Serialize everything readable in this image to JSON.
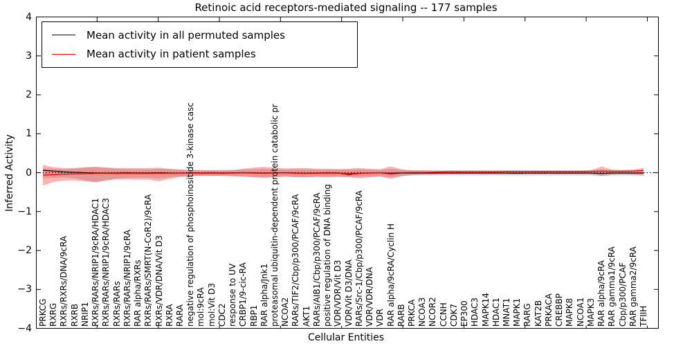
{
  "chart_data": {
    "type": "line",
    "title": "Retinoic acid receptors-mediated signaling -- 177 samples",
    "xlabel": "Cellular Entities",
    "ylabel": "Inferred Activity",
    "ylim": [
      -4,
      4
    ],
    "yticks": [
      4,
      3,
      2,
      1,
      0,
      -1,
      -2,
      -3,
      -4
    ],
    "grid": false,
    "legend_position": "upper-left",
    "zero_line": "dotted-black",
    "categories": [
      "PRKCG",
      "RXRG",
      "RXRs/RXRs/DNA/9cRA",
      "RXRB",
      "NRIP1",
      "RXRs/RARs/NRIP1/9cRA/HDAC1",
      "RXRs/RARs/NRIP1/9cRA/HDAC3",
      "RXRs/RARs",
      "RXRs/RARs/NRIP1/9cRA",
      "RAR alpha/RXRs",
      "RXRs/RARs/SMRT(N-CoR2)/9cRA",
      "RXRs/VDR/DNA/Vit D3",
      "RXRA",
      "RARA",
      "negative regulation of phosphoinositide 3-kinase casc",
      "mol:9cRA",
      "mol:Vit D3",
      "CDC2",
      "response to UV",
      "CRBP1/9-cic-RA",
      "RBP1",
      "RAR alpha/Jnk1",
      "proteasomal ubiquitin-dependent protein catabolic pr",
      "NCOA2",
      "RARs/TIF2/Cbp/p300/PCAF/9cRA",
      "AKT1",
      "RARs/AIB1/Cbp/p300/PCAF/9cRA",
      "positive regulation of DNA binding",
      "VDR/VDR/Vit D3",
      "VDR/Vit D3/DNA",
      "RARs/Src-1/Cbp/p300/PCAF/9cRA",
      "VDR/VDR/DNA",
      "VDR",
      "RAR alpha/9cRA/Cyclin H",
      "RARB",
      "PRKCA",
      "NCOA3",
      "NCOR2",
      "CCNH",
      "CDK7",
      "EP300",
      "HDAC3",
      "MAPK14",
      "HDAC1",
      "MNAT1",
      "MAPK1",
      "RARG",
      "KAT2B",
      "PRKACA",
      "CREBBP",
      "MAPK8",
      "NCOA1",
      "MAPK3",
      "RAR alpha/9cRA",
      "RAR gamma1/9cRA",
      "Cbp/p300/PCAF",
      "RAR gamma2/9cRA",
      "TFIIH"
    ],
    "series": [
      {
        "name": "Mean activity in all permuted samples",
        "color": "#000000",
        "values": [
          0.06,
          0.04,
          0.02,
          0.01,
          0.0,
          -0.01,
          -0.01,
          -0.01,
          -0.005,
          -0.01,
          -0.01,
          -0.005,
          -0.01,
          -0.01,
          -0.005,
          -0.01,
          -0.005,
          -0.01,
          -0.005,
          0.0,
          -0.005,
          -0.01,
          -0.005,
          0.0,
          -0.01,
          -0.015,
          -0.01,
          -0.005,
          -0.01,
          -0.05,
          -0.02,
          -0.01,
          -0.005,
          -0.03,
          -0.01,
          -0.01,
          -0.01,
          -0.01,
          -0.01,
          -0.01,
          -0.01,
          -0.01,
          -0.01,
          -0.01,
          -0.01,
          -0.015,
          -0.01,
          -0.01,
          -0.01,
          -0.01,
          -0.01,
          -0.01,
          -0.01,
          -0.02,
          -0.01,
          -0.01,
          -0.01,
          -0.01
        ]
      },
      {
        "name": "Mean activity in patient samples",
        "color": "#ff0000",
        "values": [
          -0.065,
          -0.05,
          -0.04,
          -0.03,
          -0.025,
          -0.02,
          -0.015,
          -0.02,
          -0.015,
          -0.02,
          -0.02,
          -0.015,
          -0.015,
          -0.01,
          -0.01,
          -0.015,
          -0.01,
          -0.015,
          -0.01,
          -0.005,
          -0.01,
          -0.015,
          -0.01,
          -0.005,
          -0.015,
          -0.02,
          -0.015,
          -0.01,
          -0.015,
          -0.02,
          -0.015,
          -0.01,
          -0.005,
          -0.01,
          0.0,
          0.005,
          0.005,
          0.01,
          0.02,
          0.025,
          0.025,
          0.025,
          0.025,
          0.025,
          0.03,
          0.03,
          0.03,
          0.03,
          0.03,
          0.03,
          0.03,
          0.03,
          0.035,
          0.04,
          0.035,
          0.035,
          0.04,
          0.06
        ]
      }
    ],
    "bands": [
      {
        "name": "permuted-samples-envelope",
        "color": "rgba(128,128,128,0.30)",
        "upper": [
          0.11,
          0.1,
          0.09,
          0.1,
          0.13,
          0.15,
          0.13,
          0.1,
          0.09,
          0.09,
          0.09,
          0.1,
          0.09,
          0.08,
          0.07,
          0.07,
          0.07,
          0.07,
          0.07,
          0.08,
          0.09,
          0.1,
          0.09,
          0.08,
          0.09,
          0.09,
          0.08,
          0.08,
          0.08,
          0.08,
          0.09,
          0.08,
          0.07,
          0.1,
          0.07,
          0.06,
          0.06,
          0.06,
          0.06,
          0.06,
          0.06,
          0.06,
          0.06,
          0.06,
          0.06,
          0.06,
          0.06,
          0.06,
          0.06,
          0.06,
          0.06,
          0.06,
          0.06,
          0.08,
          0.06,
          0.06,
          0.06,
          0.07
        ],
        "lower": [
          -0.14,
          -0.13,
          -0.12,
          -0.14,
          -0.2,
          -0.25,
          -0.2,
          -0.15,
          -0.13,
          -0.13,
          -0.13,
          -0.15,
          -0.12,
          -0.1,
          -0.09,
          -0.09,
          -0.09,
          -0.09,
          -0.09,
          -0.1,
          -0.11,
          -0.12,
          -0.11,
          -0.1,
          -0.11,
          -0.11,
          -0.1,
          -0.1,
          -0.1,
          -0.1,
          -0.11,
          -0.1,
          -0.09,
          -0.12,
          -0.09,
          -0.07,
          -0.07,
          -0.07,
          -0.07,
          -0.07,
          -0.07,
          -0.07,
          -0.07,
          -0.07,
          -0.07,
          -0.07,
          -0.07,
          -0.07,
          -0.07,
          -0.07,
          -0.07,
          -0.07,
          -0.07,
          -0.09,
          -0.07,
          -0.07,
          -0.07,
          -0.08
        ]
      },
      {
        "name": "patient-samples-envelope",
        "color": "rgba(255,0,0,0.30)",
        "upper": [
          0.2,
          0.14,
          0.12,
          0.12,
          0.14,
          0.15,
          0.13,
          0.12,
          0.12,
          0.12,
          0.12,
          0.13,
          0.1,
          0.08,
          0.07,
          0.06,
          0.06,
          0.06,
          0.07,
          0.1,
          0.13,
          0.15,
          0.13,
          0.11,
          0.12,
          0.12,
          0.1,
          0.1,
          0.09,
          0.1,
          0.12,
          0.1,
          0.09,
          0.16,
          0.09,
          0.06,
          0.06,
          0.05,
          0.05,
          0.05,
          0.05,
          0.05,
          0.05,
          0.05,
          0.05,
          0.05,
          0.05,
          0.05,
          0.05,
          0.05,
          0.05,
          0.05,
          0.06,
          0.16,
          0.08,
          0.07,
          0.08,
          0.12
        ],
        "lower": [
          -0.33,
          -0.24,
          -0.2,
          -0.2,
          -0.22,
          -0.24,
          -0.2,
          -0.17,
          -0.17,
          -0.18,
          -0.18,
          -0.22,
          -0.16,
          -0.11,
          -0.09,
          -0.08,
          -0.08,
          -0.08,
          -0.09,
          -0.1,
          -0.12,
          -0.13,
          -0.12,
          -0.1,
          -0.12,
          -0.12,
          -0.11,
          -0.12,
          -0.11,
          -0.12,
          -0.14,
          -0.12,
          -0.1,
          -0.16,
          -0.09,
          -0.06,
          -0.05,
          -0.05,
          -0.04,
          -0.04,
          -0.04,
          -0.04,
          -0.04,
          -0.04,
          -0.04,
          -0.04,
          -0.04,
          -0.04,
          -0.04,
          -0.04,
          -0.04,
          -0.04,
          -0.04,
          -0.08,
          -0.05,
          -0.04,
          -0.05,
          -0.06
        ]
      }
    ],
    "legend": {
      "items": [
        {
          "label": "Mean activity in all permuted samples",
          "color": "#000000"
        },
        {
          "label": "Mean activity in patient samples",
          "color": "#ff0000"
        }
      ]
    }
  }
}
